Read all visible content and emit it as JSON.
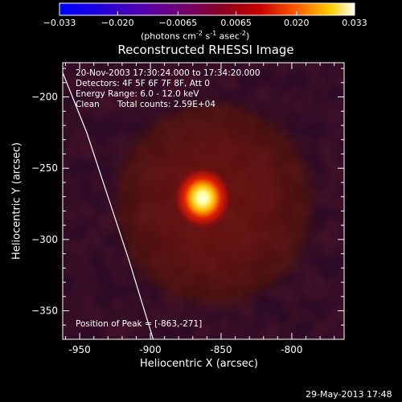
{
  "chart_data": {
    "type": "heatmap",
    "title": "Reconstructed RHESSI Image",
    "xlabel": "Heliocentric X (arcsec)",
    "ylabel": "Heliocentric Y (arcsec)",
    "xlim": [
      -962,
      -763
    ],
    "ylim": [
      -370,
      -176
    ],
    "x_ticks": [
      -950,
      -900,
      -850,
      -800
    ],
    "y_ticks": [
      -200,
      -250,
      -300,
      -350
    ],
    "colorbar": {
      "range": [
        -0.033,
        0.033
      ],
      "ticks": [
        "-0.033",
        "-0.020",
        "-0.0065",
        "0.0065",
        "0.020",
        "0.033"
      ],
      "units_prefix": "(photons cm",
      "units_exp1": "-2",
      "units_mid": " s",
      "units_exp2": "-1",
      "units_mid2": " asec",
      "units_exp3": "-2",
      "units_suffix": ")",
      "colormap": "fire"
    },
    "peak": {
      "x": -863,
      "y": -271,
      "value": 0.033,
      "width_arcsec": 9
    },
    "background_disk": {
      "center": [
        -855,
        -275
      ],
      "radius_arcsec": 75,
      "level": 0.0065
    },
    "limb_line": {
      "points": [
        [
          -962,
          -183
        ],
        [
          -945,
          -225
        ],
        [
          -930,
          -270
        ],
        [
          -915,
          -315
        ],
        [
          -898,
          -370
        ]
      ]
    },
    "annotations": {
      "time": "20-Nov-2003 17:30:24.000 to 17:34:20.000",
      "detectors": "Detectors: 4F 5F 6F 7F 8F, Att 0",
      "energy": "Energy Range: 6.0 - 12.0 keV",
      "clean": "Clean",
      "counts": "Total counts: 2.59E+04",
      "peak_position": "Position of Peak = [-863,-271]"
    },
    "footer_date": "29-May-2013 17:48"
  }
}
